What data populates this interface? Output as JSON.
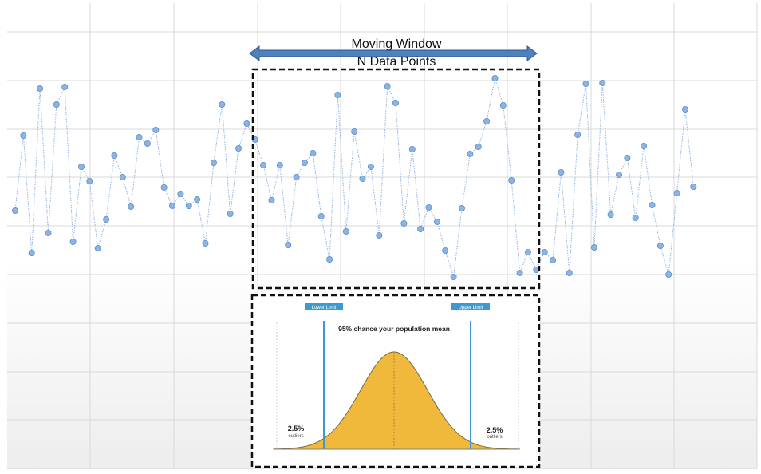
{
  "window_label": {
    "line1": "Moving Window",
    "line2": "N Data Points"
  },
  "series": {
    "y": [
      264,
      170,
      317,
      111,
      292,
      131,
      109,
      303,
      209,
      227,
      311,
      275,
      195,
      222,
      259,
      172,
      180,
      163,
      235,
      258,
      243,
      258,
      250,
      305,
      204,
      131,
      268,
      186,
      155,
      175,
      207,
      251,
      207,
      307,
      222,
      204,
      192,
      271,
      325,
      119,
      290,
      165,
      224,
      209,
      295,
      108,
      129,
      280,
      187,
      287,
      260,
      278,
      314,
      347,
      261,
      193,
      184,
      152,
      98,
      132,
      226,
      342,
      316,
      338,
      316,
      326,
      216,
      342,
      169,
      105,
      310,
      104,
      269,
      219,
      198,
      273,
      183,
      257,
      308,
      344,
      242,
      137,
      234
    ]
  },
  "distribution": {
    "title": "95% chance your population mean",
    "lower_label": "Lower Limit",
    "upper_label": "Upper Limit",
    "left_pct": "2.5%",
    "left_sub": "outliers",
    "right_pct": "2.5%",
    "right_sub": "outliers"
  },
  "colors": {
    "point": "#8db3e2",
    "point_stroke": "#5b8fc9",
    "line": "#8db3e2",
    "arrow": "#4f81bd",
    "arrow_stroke": "#2f5a8e",
    "limit": "#3d9ad1",
    "curve_fill": "#f0b93c",
    "grid": "#d9d9d9"
  }
}
